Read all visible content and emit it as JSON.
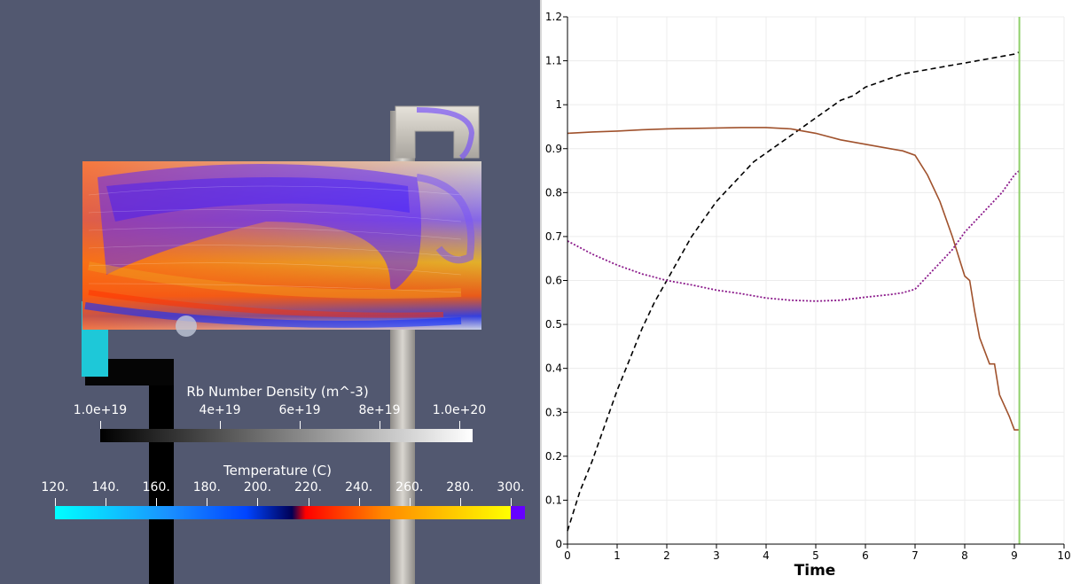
{
  "left_view": {
    "colorbars": [
      {
        "title": "Rb Number Density (m^-3)",
        "ticks": [
          "1.0e+19",
          "4e+19",
          "6e+19",
          "8e+19",
          "1.0e+20"
        ],
        "colors": [
          "#000000",
          "#ffffff"
        ]
      },
      {
        "title": "Temperature (C)",
        "ticks": [
          "120.",
          "140.",
          "160.",
          "180.",
          "200.",
          "220.",
          "240.",
          "260.",
          "280.",
          "300."
        ],
        "colors": [
          "#00ffff",
          "#0044ff",
          "#000055",
          "#ff0000",
          "#ff8800",
          "#ffff00",
          "#6600ff"
        ]
      }
    ]
  },
  "chart_data": {
    "type": "line",
    "xlabel": "Time",
    "ylabel": "",
    "xlim": [
      0,
      10
    ],
    "ylim": [
      0,
      1.2
    ],
    "x_ticks": [
      "0",
      "1",
      "2",
      "3",
      "4",
      "5",
      "6",
      "7",
      "8",
      "9",
      "10"
    ],
    "y_ticks": [
      "0",
      "0.1",
      "0.2",
      "0.3",
      "0.4",
      "0.5",
      "0.6",
      "0.7",
      "0.8",
      "0.9",
      "1",
      "1.1",
      "1.2"
    ],
    "grid": true,
    "legend": "none",
    "time_marker": 9.1,
    "series": [
      {
        "style": "dashed",
        "color": "#000000",
        "x": [
          0,
          0.25,
          0.5,
          0.75,
          1,
          1.25,
          1.5,
          1.75,
          2,
          2.25,
          2.5,
          2.75,
          3,
          3.25,
          3.5,
          3.75,
          4,
          4.25,
          4.5,
          4.75,
          5,
          5.25,
          5.5,
          5.75,
          6,
          6.25,
          6.5,
          6.75,
          7,
          7.25,
          7.5,
          7.75,
          8,
          8.25,
          8.5,
          8.75,
          9,
          9.1
        ],
        "y": [
          0.03,
          0.12,
          0.19,
          0.27,
          0.35,
          0.42,
          0.49,
          0.55,
          0.6,
          0.65,
          0.7,
          0.74,
          0.78,
          0.81,
          0.84,
          0.87,
          0.89,
          0.91,
          0.93,
          0.95,
          0.97,
          0.99,
          1.01,
          1.02,
          1.04,
          1.05,
          1.06,
          1.07,
          1.075,
          1.08,
          1.085,
          1.09,
          1.095,
          1.1,
          1.105,
          1.11,
          1.115,
          1.12
        ]
      },
      {
        "style": "solid",
        "color": "#a0522d",
        "x": [
          0,
          0.5,
          1,
          1.5,
          2,
          2.5,
          3,
          3.5,
          4,
          4.5,
          5,
          5.5,
          6,
          6.5,
          6.75,
          7,
          7.25,
          7.5,
          7.75,
          8,
          8.1,
          8.2,
          8.3,
          8.5,
          8.6,
          8.7,
          8.9,
          9,
          9.1
        ],
        "y": [
          0.935,
          0.938,
          0.94,
          0.943,
          0.945,
          0.946,
          0.947,
          0.948,
          0.948,
          0.945,
          0.935,
          0.92,
          0.91,
          0.9,
          0.895,
          0.885,
          0.84,
          0.78,
          0.7,
          0.61,
          0.6,
          0.53,
          0.47,
          0.41,
          0.41,
          0.34,
          0.29,
          0.26,
          0.26
        ]
      },
      {
        "style": "dotted",
        "color": "#8b1a8b",
        "x": [
          0,
          0.5,
          1,
          1.5,
          2,
          2.5,
          3,
          3.5,
          4,
          4.5,
          5,
          5.5,
          6,
          6.5,
          6.75,
          7,
          7.25,
          7.5,
          7.75,
          8,
          8.25,
          8.5,
          8.75,
          9,
          9.1
        ],
        "y": [
          0.69,
          0.66,
          0.635,
          0.615,
          0.6,
          0.59,
          0.578,
          0.57,
          0.56,
          0.555,
          0.553,
          0.555,
          0.562,
          0.568,
          0.572,
          0.58,
          0.61,
          0.64,
          0.67,
          0.71,
          0.74,
          0.77,
          0.8,
          0.84,
          0.85
        ]
      }
    ]
  }
}
